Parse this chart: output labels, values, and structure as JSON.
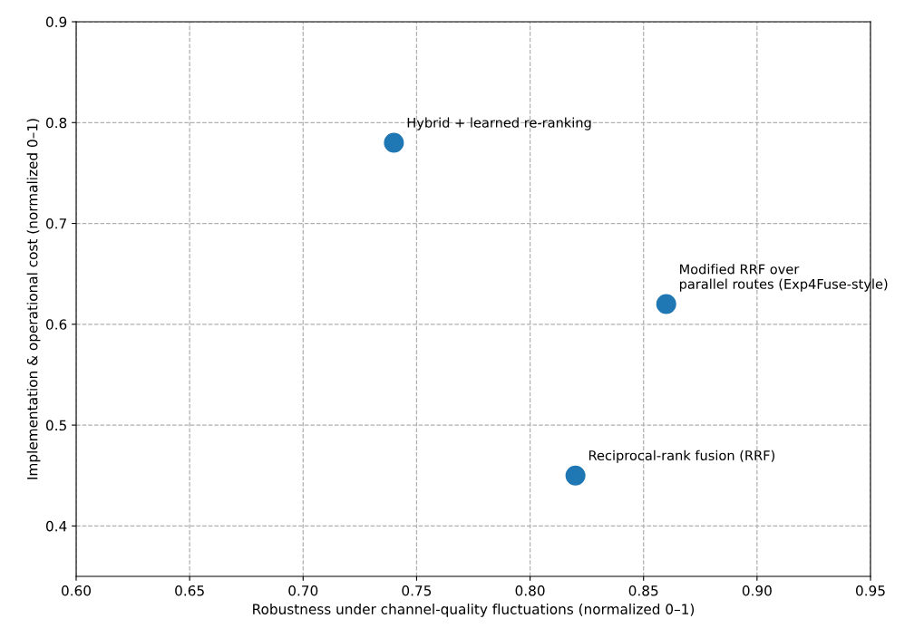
{
  "chart_data": {
    "type": "scatter",
    "xlabel": "Robustness under channel-quality fluctuations (normalized 0–1)",
    "ylabel": "Implementation & operational cost (normalized 0–1)",
    "series": [
      {
        "color": "#1f77b4",
        "x": [
          0.74,
          0.86,
          0.82
        ],
        "values": [
          0.78,
          0.62,
          0.45
        ]
      }
    ],
    "annotations": [
      {
        "text": "Hybrid + learned re-ranking",
        "x": 0.74,
        "y": 0.78
      },
      {
        "text": "Modified RRF over\nparallel routes (Exp4Fuse-style)",
        "x": 0.86,
        "y": 0.62
      },
      {
        "text": "Reciprocal-rank fusion (RRF)",
        "x": 0.82,
        "y": 0.45
      }
    ],
    "xlim": [
      0.6,
      0.95
    ],
    "xticks": [
      {
        "value": 0.6,
        "label": "0.60"
      },
      {
        "value": 0.65,
        "label": "0.65"
      },
      {
        "value": 0.7,
        "label": "0.70"
      },
      {
        "value": 0.75,
        "label": "0.75"
      },
      {
        "value": 0.8,
        "label": "0.80"
      },
      {
        "value": 0.85,
        "label": "0.85"
      },
      {
        "value": 0.9,
        "label": "0.90"
      },
      {
        "value": 0.95,
        "label": "0.95"
      }
    ],
    "ylim": [
      0.35,
      0.9
    ],
    "yticks": [
      0.4,
      0.5,
      0.6,
      0.7,
      0.8,
      0.9
    ],
    "grid": true,
    "marker": "circle"
  }
}
